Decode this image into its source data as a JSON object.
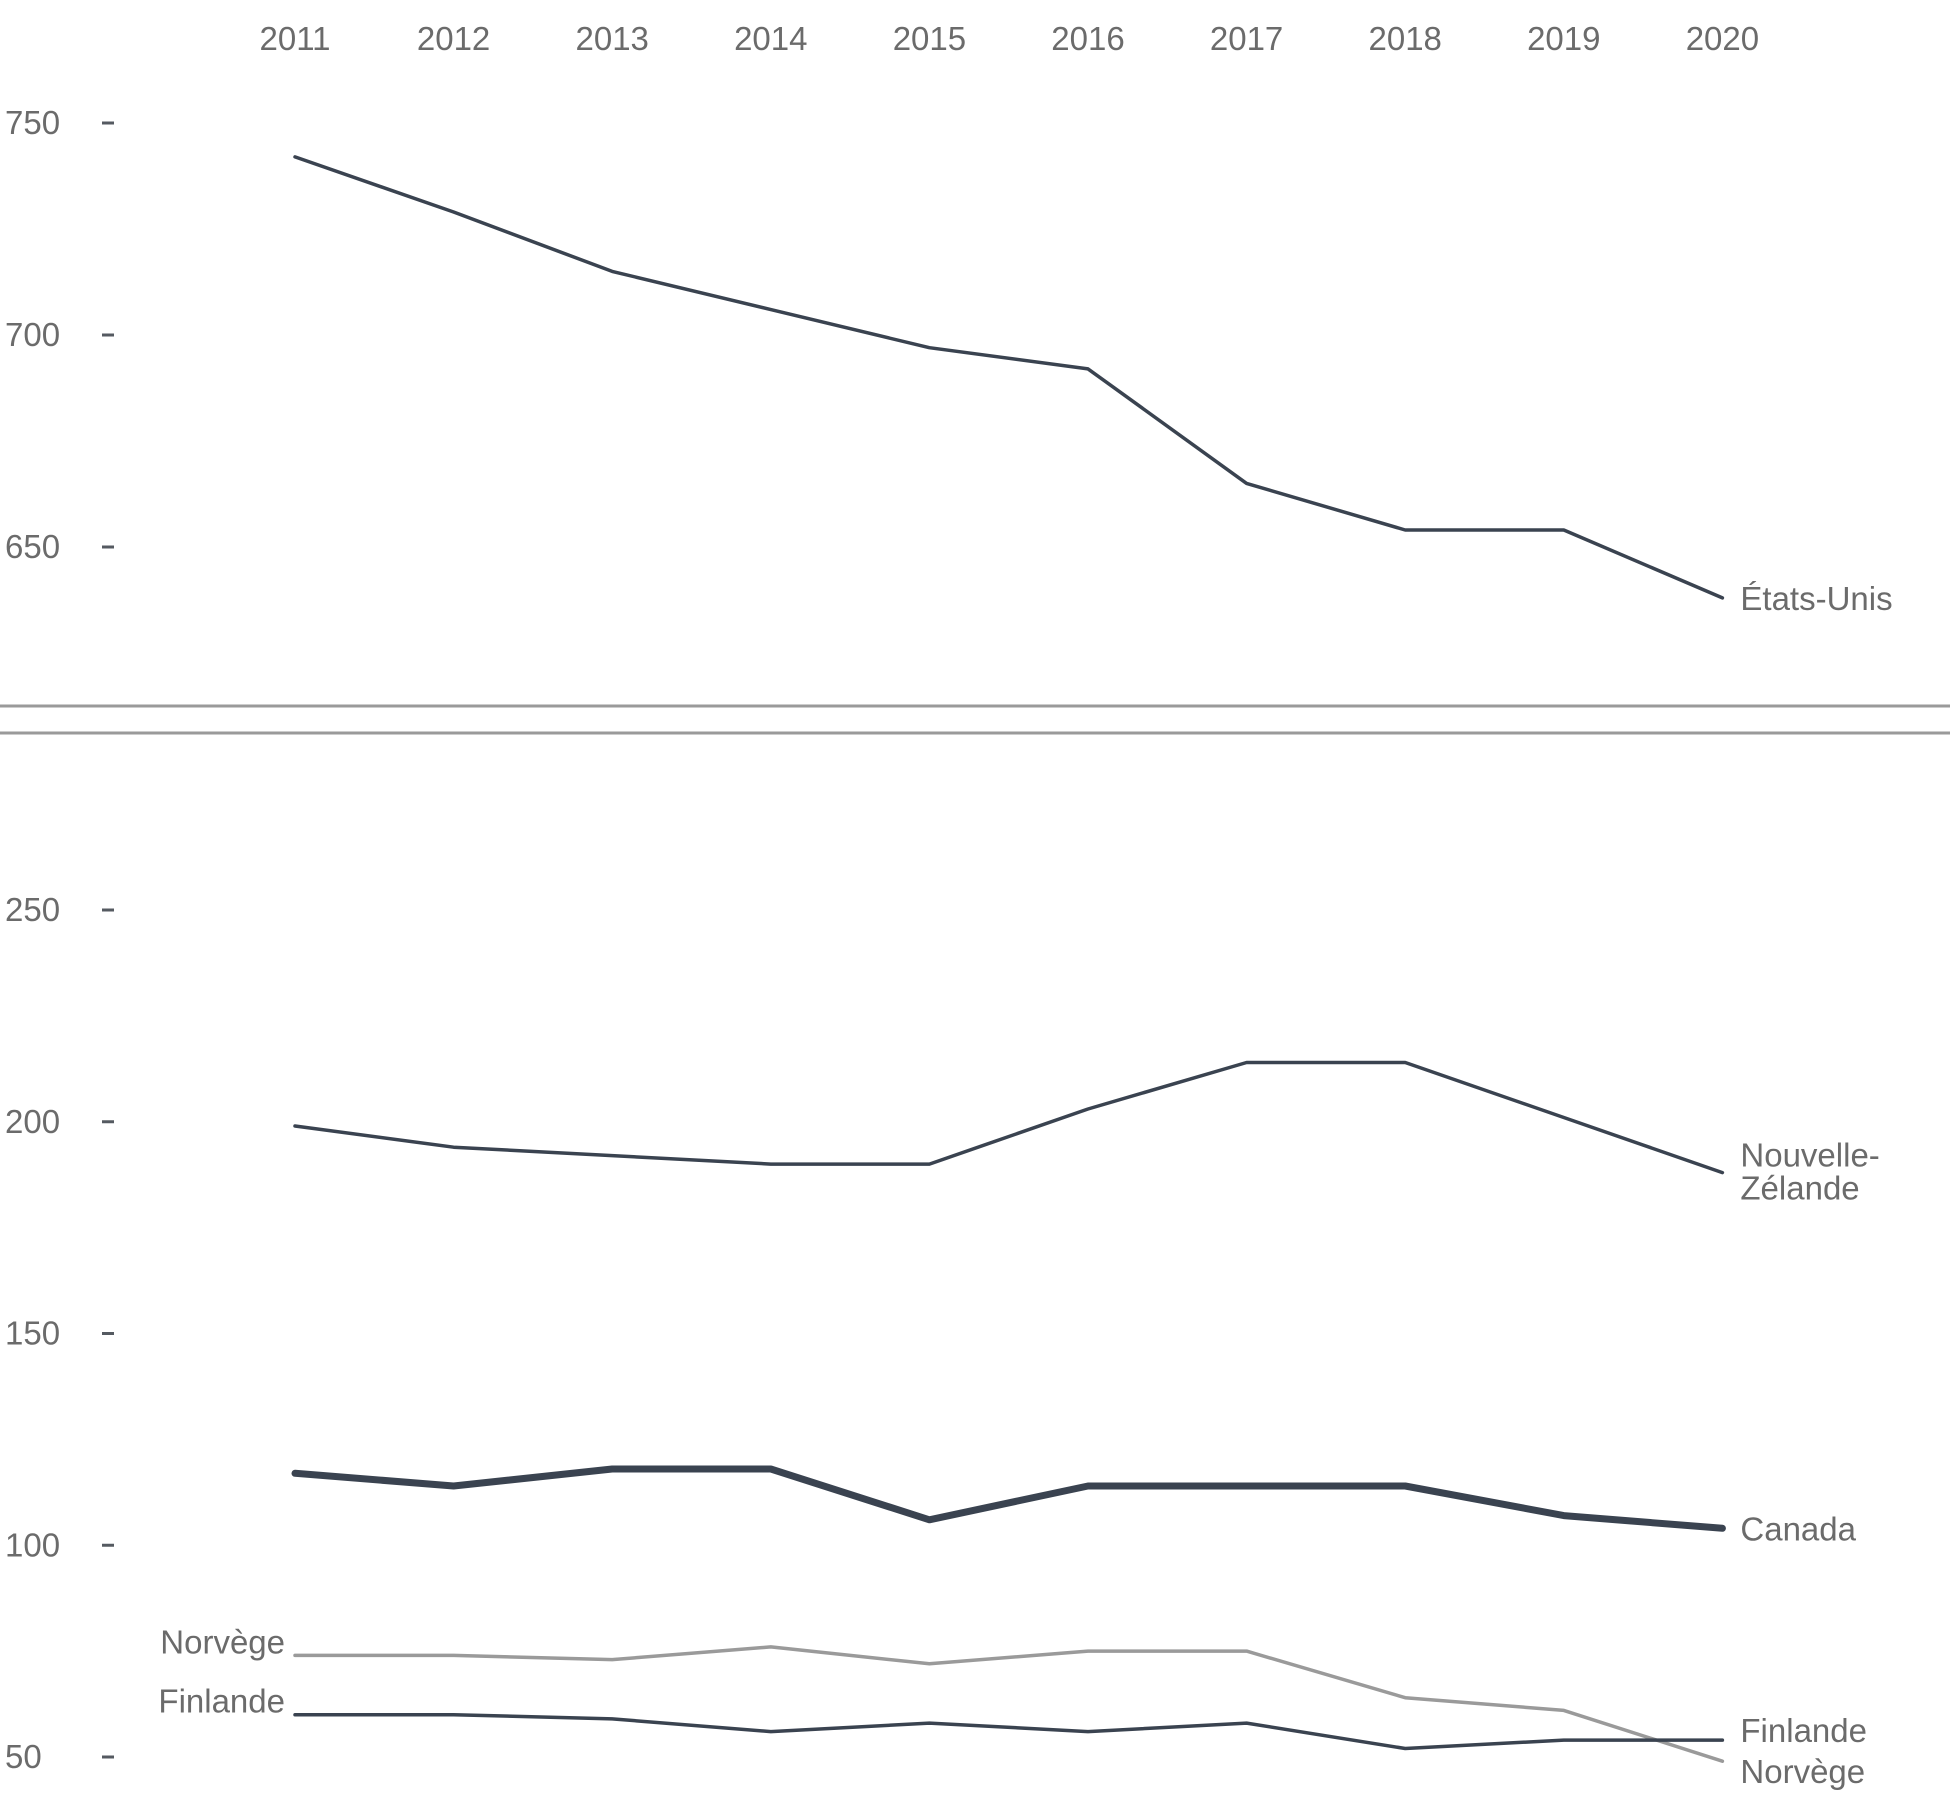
{
  "chart_data": {
    "type": "line",
    "x": [
      "2011",
      "2012",
      "2013",
      "2014",
      "2015",
      "2016",
      "2017",
      "2018",
      "2019",
      "2020"
    ],
    "panels": [
      {
        "id": "top",
        "y_ticks": [
          "750",
          "700",
          "650"
        ],
        "y_tick_values": [
          750,
          700,
          650
        ],
        "ylim": [
          620,
          760
        ],
        "series": [
          {
            "name": "États-Unis",
            "label_lines": [
              "États-Unis"
            ],
            "values": [
              742,
              729,
              715,
              706,
              697,
              692,
              665,
              654,
              654,
              638
            ],
            "color": "#3a4350",
            "weight": "normal",
            "label_side": "end"
          }
        ]
      },
      {
        "id": "bottom",
        "y_ticks": [
          "250",
          "200",
          "150",
          "100",
          "50"
        ],
        "y_tick_values": [
          250,
          200,
          150,
          100,
          50
        ],
        "ylim": [
          45,
          280
        ],
        "series": [
          {
            "name": "Nouvelle-Zélande",
            "label_lines": [
              "Nouvelle-",
              "Zélande"
            ],
            "values": [
              199,
              194,
              192,
              190,
              190,
              203,
              214,
              214,
              201,
              188
            ],
            "color": "#3a4350",
            "weight": "normal",
            "label_side": "end"
          },
          {
            "name": "Canada",
            "label_lines": [
              "Canada"
            ],
            "values": [
              117,
              114,
              118,
              118,
              106,
              114,
              114,
              114,
              107,
              104
            ],
            "color": "#3a4350",
            "weight": "bold",
            "label_side": "end"
          },
          {
            "name": "Norvège",
            "label_lines": [
              "Norvège"
            ],
            "start_label": "Norvège",
            "values": [
              74,
              74,
              73,
              76,
              72,
              75,
              75,
              64,
              61,
              49
            ],
            "color": "#9a9a9a",
            "weight": "normal",
            "label_side": "both"
          },
          {
            "name": "Finlande",
            "label_lines": [
              "Finlande"
            ],
            "start_label": "Finlande",
            "values": [
              60,
              60,
              59,
              56,
              58,
              56,
              58,
              52,
              54,
              54
            ],
            "color": "#3a4350",
            "weight": "normal",
            "label_side": "both"
          }
        ]
      }
    ]
  }
}
